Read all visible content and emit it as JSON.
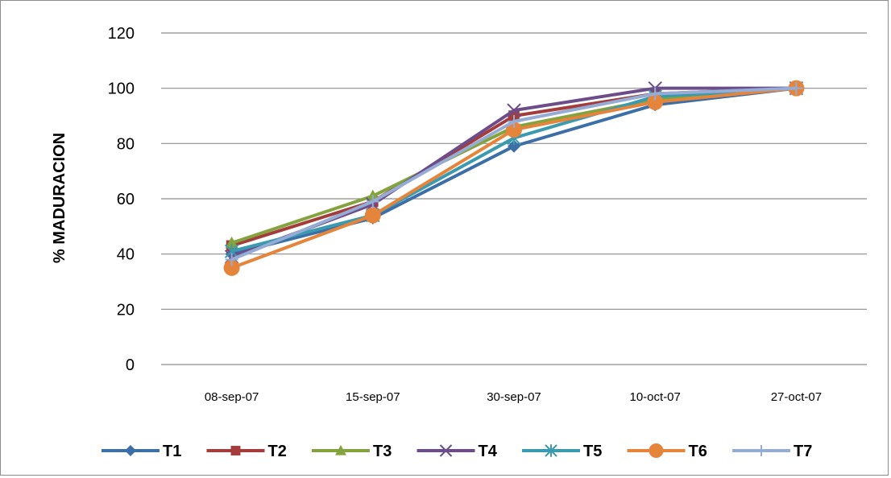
{
  "chart_data": {
    "type": "line",
    "title": "",
    "xlabel": "",
    "ylabel": "% MADURACION",
    "ylim": [
      0,
      120
    ],
    "yticks": [
      0,
      20,
      40,
      60,
      80,
      100,
      120
    ],
    "grid": true,
    "legend_position": "bottom",
    "categories": [
      "08-sep-07",
      "15-sep-07",
      "30-sep-07",
      "10-oct-07",
      "27-oct-07"
    ],
    "series": [
      {
        "name": "T1",
        "color": "#3c6ea8",
        "marker": "diamond",
        "values": [
          40,
          53,
          79,
          94,
          100
        ]
      },
      {
        "name": "T2",
        "color": "#a33c3a",
        "marker": "square",
        "values": [
          43,
          59,
          90,
          98,
          100
        ]
      },
      {
        "name": "T3",
        "color": "#83a33f",
        "marker": "triangle",
        "values": [
          44,
          61,
          86,
          96,
          100
        ]
      },
      {
        "name": "T4",
        "color": "#6c4d8a",
        "marker": "x",
        "values": [
          39,
          58,
          92,
          100,
          100
        ]
      },
      {
        "name": "T5",
        "color": "#3a9aaf",
        "marker": "star",
        "values": [
          41,
          54,
          82,
          97,
          100
        ]
      },
      {
        "name": "T6",
        "color": "#e5843b",
        "marker": "circle",
        "values": [
          35,
          54,
          85,
          95,
          100
        ]
      },
      {
        "name": "T7",
        "color": "#95acd4",
        "marker": "plus",
        "values": [
          38,
          59,
          88,
          98,
          100
        ]
      }
    ]
  }
}
